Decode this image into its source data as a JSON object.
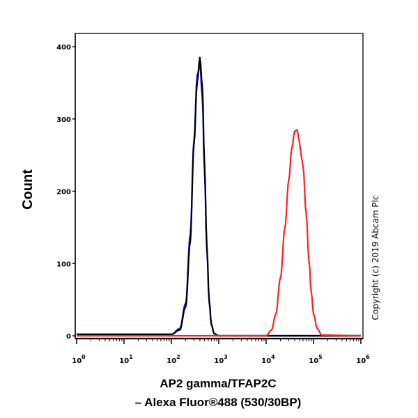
{
  "chart_data": {
    "type": "line",
    "xscale": "log",
    "xlim": [
      1,
      1000000
    ],
    "ylim": [
      0,
      400
    ],
    "xticks": [
      {
        "base": "10",
        "exp": "0"
      },
      {
        "base": "10",
        "exp": "1"
      },
      {
        "base": "10",
        "exp": "2"
      },
      {
        "base": "10",
        "exp": "3"
      },
      {
        "base": "10",
        "exp": "4"
      },
      {
        "base": "10",
        "exp": "5"
      },
      {
        "base": "10",
        "exp": "6"
      }
    ],
    "yticks": [
      "0",
      "100",
      "200",
      "300",
      "400"
    ],
    "ytick_values": [
      0,
      100,
      200,
      300,
      400
    ],
    "ylabel": "Count",
    "xlabel_line1": "AP2 gamma/TFAP2C",
    "xlabel_line2": "– Alexa Fluor®488 (530/30BP)",
    "grid": false,
    "series": [
      {
        "color": "#1a1aff",
        "x": [
          1,
          100,
          150,
          200,
          250,
          300,
          350,
          400,
          450,
          500,
          560,
          630,
          700,
          800,
          1000,
          1000000
        ],
        "y": [
          2,
          2,
          10,
          45,
          140,
          270,
          360,
          375,
          330,
          230,
          120,
          45,
          15,
          3,
          0,
          0
        ]
      },
      {
        "color": "#000000",
        "x": [
          1,
          100,
          150,
          200,
          250,
          300,
          350,
          400,
          450,
          500,
          560,
          630,
          700,
          800,
          1000,
          1000000
        ],
        "y": [
          2,
          2,
          8,
          40,
          130,
          265,
          350,
          385,
          345,
          240,
          125,
          48,
          16,
          3,
          0,
          0
        ]
      },
      {
        "color": "#ff2020",
        "x": [
          1,
          10000,
          13000,
          16000,
          20000,
          25000,
          30000,
          35000,
          40000,
          45000,
          50000,
          55000,
          60000,
          70000,
          80000,
          90000,
          100000,
          120000,
          150000,
          1000000
        ],
        "y": [
          0,
          0,
          8,
          30,
          80,
          150,
          215,
          260,
          283,
          285,
          270,
          250,
          235,
          170,
          105,
          60,
          30,
          10,
          1,
          0
        ]
      }
    ]
  },
  "copyright": "Copyright (c) 2019 Abcam Plc"
}
